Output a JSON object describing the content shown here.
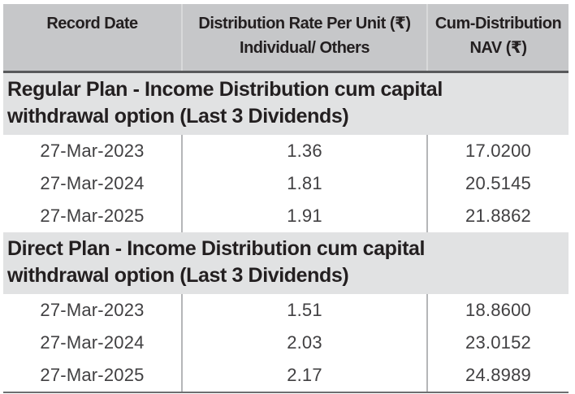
{
  "table": {
    "header": {
      "record_date": "Record Date",
      "rate_line1": "Distribution Rate Per Unit (₹)",
      "rate_line2": "Individual/ Others",
      "nav_line1": "Cum-Distribution",
      "nav_line2": "NAV (₹)"
    },
    "sections": [
      {
        "title": "Regular Plan - Income Distribution cum capital withdrawal option (Last 3 Dividends)",
        "rows": [
          [
            "27-Mar-2023",
            "1.36",
            "17.0200"
          ],
          [
            "27-Mar-2024",
            "1.81",
            "20.5145"
          ],
          [
            "27-Mar-2025",
            "1.91",
            "21.8862"
          ]
        ]
      },
      {
        "title": "Direct Plan - Income Distribution cum capital withdrawal option (Last 3 Dividends)",
        "rows": [
          [
            "27-Mar-2023",
            "1.51",
            "18.8600"
          ],
          [
            "27-Mar-2024",
            "2.03",
            "23.0152"
          ],
          [
            "27-Mar-2025",
            "2.17",
            "24.8989"
          ]
        ]
      }
    ]
  },
  "colors": {
    "header_bg": "#c6c7c9",
    "section_bg": "#e1e2e3",
    "row_bg": "#ffffff",
    "heading_text": "#231f20",
    "data_text": "#414042",
    "header_rule": "#58595b",
    "bottom_rule": "#6d6e70",
    "divider_header": "#d8d9da",
    "divider_rows": "#b5b6b8"
  }
}
